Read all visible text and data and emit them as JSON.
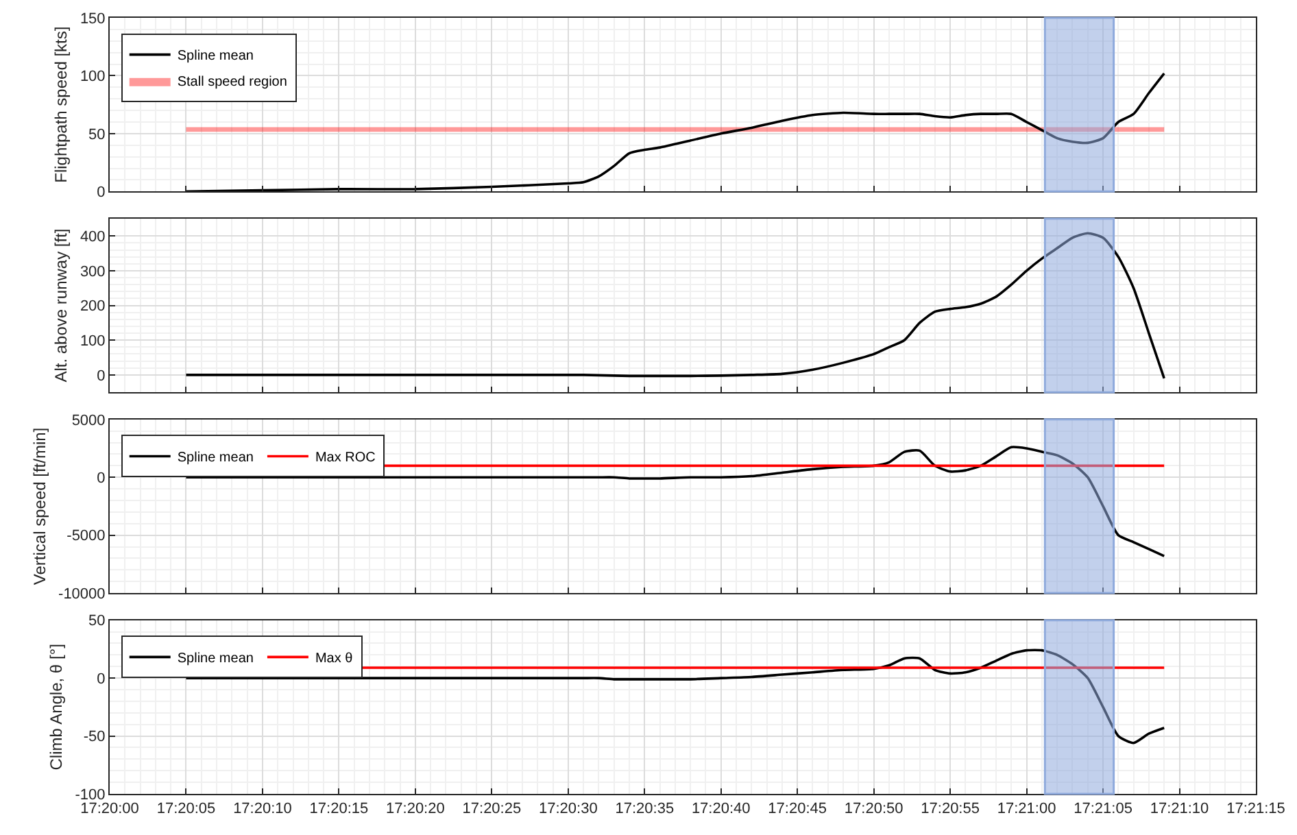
{
  "chart_data": [
    {
      "type": "line",
      "ylabel": "Flightpath speed [kts]",
      "legend": "top left",
      "grid": true,
      "tick_labels": "y",
      "x": [
        17.334722,
        17.336111,
        17.3375,
        17.338889,
        17.340278,
        17.341667,
        17.341944,
        17.342222,
        17.3425,
        17.342778,
        17.343056,
        17.343333,
        17.343889,
        17.344444,
        17.345,
        17.345556,
        17.346111,
        17.346667,
        17.347222,
        17.3475,
        17.347778,
        17.348056,
        17.348333,
        17.348611,
        17.348889,
        17.349167,
        17.349444,
        17.349722,
        17.35,
        17.350278,
        17.350556,
        17.350833,
        17.351111,
        17.351389,
        17.351667,
        17.351944,
        17.352222,
        17.3525
      ],
      "series": [
        {
          "name": "Spline mean",
          "color": "#000000",
          "values": [
            0,
            1,
            2,
            2,
            4,
            7,
            8,
            13,
            22,
            33,
            36,
            38,
            44,
            50,
            55,
            61,
            66,
            68,
            67,
            67,
            67,
            67,
            65,
            64,
            66,
            67,
            67,
            67,
            60,
            53,
            46,
            43,
            42,
            46,
            60,
            67,
            85,
            102
          ]
        }
      ],
      "bands": [
        {
          "axis": "y",
          "from": 51.5,
          "to": 55.5,
          "label": "Stall speed region",
          "color": "#ff0000"
        },
        {
          "axis": "x",
          "from": 17.350333,
          "to": 17.351583,
          "color": "#8faadc"
        }
      ],
      "xlim": [
        17.333333,
        17.354167
      ],
      "xticks": [
        {
          "value": 17.333333,
          "label": null
        },
        {
          "value": 17.334722,
          "label": null
        },
        {
          "value": 17.336111,
          "label": null
        },
        {
          "value": 17.3375,
          "label": null
        },
        {
          "value": 17.338889,
          "label": null
        },
        {
          "value": 17.340278,
          "label": null
        },
        {
          "value": 17.341667,
          "label": null
        },
        {
          "value": 17.343056,
          "label": null
        },
        {
          "value": 17.344444,
          "label": null
        },
        {
          "value": 17.345833,
          "label": null
        },
        {
          "value": 17.347222,
          "label": null
        },
        {
          "value": 17.348611,
          "label": null
        },
        {
          "value": 17.35,
          "label": null
        },
        {
          "value": 17.351389,
          "label": null
        },
        {
          "value": 17.352778,
          "label": null
        },
        {
          "value": 17.354167,
          "label": null
        }
      ],
      "ylim": [
        0,
        150
      ],
      "yticks": [
        0,
        50,
        100,
        150
      ]
    },
    {
      "type": "line",
      "ylabel": "Alt. above runway [ft]",
      "grid": true,
      "tick_labels": "y",
      "x": [
        17.334722,
        17.336111,
        17.3375,
        17.338889,
        17.340278,
        17.341667,
        17.341944,
        17.342222,
        17.3425,
        17.342778,
        17.343056,
        17.343333,
        17.343889,
        17.344444,
        17.345,
        17.345556,
        17.346111,
        17.346667,
        17.347222,
        17.3475,
        17.347778,
        17.348056,
        17.348333,
        17.348611,
        17.348889,
        17.349167,
        17.349444,
        17.349722,
        17.35,
        17.350278,
        17.350556,
        17.350833,
        17.351111,
        17.351389,
        17.351667,
        17.351944,
        17.352222,
        17.3525
      ],
      "series": [
        {
          "color": "#000000",
          "values": [
            0,
            0,
            0,
            0,
            0,
            0,
            0,
            -1,
            -2,
            -3,
            -3,
            -3,
            -3,
            -2,
            0,
            3,
            15,
            35,
            60,
            80,
            100,
            150,
            182,
            190,
            195,
            205,
            225,
            260,
            300,
            335,
            365,
            395,
            408,
            395,
            340,
            250,
            120,
            -10
          ]
        }
      ],
      "bands": [
        {
          "axis": "x",
          "from": 17.350333,
          "to": 17.351583,
          "color": "#8faadc"
        }
      ],
      "xlim": [
        17.333333,
        17.354167
      ],
      "xticks": [
        {
          "value": 17.333333,
          "label": null
        },
        {
          "value": 17.334722,
          "label": null
        },
        {
          "value": 17.336111,
          "label": null
        },
        {
          "value": 17.3375,
          "label": null
        },
        {
          "value": 17.338889,
          "label": null
        },
        {
          "value": 17.340278,
          "label": null
        },
        {
          "value": 17.341667,
          "label": null
        },
        {
          "value": 17.343056,
          "label": null
        },
        {
          "value": 17.344444,
          "label": null
        },
        {
          "value": 17.345833,
          "label": null
        },
        {
          "value": 17.347222,
          "label": null
        },
        {
          "value": 17.348611,
          "label": null
        },
        {
          "value": 17.35,
          "label": null
        },
        {
          "value": 17.351389,
          "label": null
        },
        {
          "value": 17.352778,
          "label": null
        },
        {
          "value": 17.354167,
          "label": null
        }
      ],
      "ylim": [
        -50,
        450
      ],
      "yticks": [
        0,
        100,
        200,
        300,
        400
      ]
    },
    {
      "type": "line",
      "ylabel": "Vertical speed [ft/min]",
      "legend": "top left",
      "grid": true,
      "tick_labels": "y",
      "x": [
        17.334722,
        17.336111,
        17.3375,
        17.338889,
        17.340278,
        17.341667,
        17.341944,
        17.342222,
        17.3425,
        17.342778,
        17.343056,
        17.343333,
        17.343889,
        17.344444,
        17.345,
        17.345556,
        17.346111,
        17.346667,
        17.347222,
        17.3475,
        17.347778,
        17.348056,
        17.348333,
        17.348611,
        17.348889,
        17.349167,
        17.349444,
        17.349722,
        17.35,
        17.350278,
        17.350556,
        17.350833,
        17.351111,
        17.351389,
        17.351667,
        17.351944,
        17.352222,
        17.3525
      ],
      "series": [
        {
          "name": "Spline mean",
          "color": "#000000",
          "values": [
            0,
            0,
            0,
            0,
            0,
            0,
            0,
            0,
            0,
            -100,
            -100,
            -100,
            0,
            0,
            100,
            400,
            700,
            900,
            1000,
            1300,
            2200,
            2300,
            1000,
            500,
            600,
            1000,
            1800,
            2600,
            2500,
            2200,
            1900,
            1200,
            0,
            -2500,
            -5000,
            -5600,
            -6200,
            -6800
          ]
        }
      ],
      "ref_lines": [
        {
          "axis": "y",
          "value": 1000,
          "label": "Max ROC",
          "color": "#ff0000"
        }
      ],
      "bands": [
        {
          "axis": "x",
          "from": 17.350333,
          "to": 17.351583,
          "color": "#8faadc"
        }
      ],
      "xlim": [
        17.333333,
        17.354167
      ],
      "xticks": [
        {
          "value": 17.333333,
          "label": null
        },
        {
          "value": 17.334722,
          "label": null
        },
        {
          "value": 17.336111,
          "label": null
        },
        {
          "value": 17.3375,
          "label": null
        },
        {
          "value": 17.338889,
          "label": null
        },
        {
          "value": 17.340278,
          "label": null
        },
        {
          "value": 17.341667,
          "label": null
        },
        {
          "value": 17.343056,
          "label": null
        },
        {
          "value": 17.344444,
          "label": null
        },
        {
          "value": 17.345833,
          "label": null
        },
        {
          "value": 17.347222,
          "label": null
        },
        {
          "value": 17.348611,
          "label": null
        },
        {
          "value": 17.35,
          "label": null
        },
        {
          "value": 17.351389,
          "label": null
        },
        {
          "value": 17.352778,
          "label": null
        },
        {
          "value": 17.354167,
          "label": null
        }
      ],
      "ylim": [
        -10000,
        5000
      ],
      "yticks": [
        -10000,
        -5000,
        0,
        5000
      ]
    },
    {
      "type": "line",
      "ylabel": "Climb Angle, θ [°]",
      "legend": "top left",
      "grid": true,
      "x": [
        17.334722,
        17.336111,
        17.3375,
        17.338889,
        17.340278,
        17.341667,
        17.341944,
        17.342222,
        17.3425,
        17.342778,
        17.343056,
        17.343333,
        17.343889,
        17.344444,
        17.345,
        17.345556,
        17.346111,
        17.346667,
        17.347222,
        17.3475,
        17.347778,
        17.348056,
        17.348333,
        17.348611,
        17.348889,
        17.349167,
        17.349444,
        17.349722,
        17.35,
        17.350278,
        17.350556,
        17.350833,
        17.351111,
        17.351389,
        17.351667,
        17.351944,
        17.352222,
        17.3525
      ],
      "series": [
        {
          "name": "Spline mean",
          "color": "#000000",
          "values": [
            0,
            0,
            0,
            0,
            0,
            0,
            0,
            0,
            -1,
            -1,
            -1,
            -1,
            -1,
            0,
            1,
            3,
            5,
            7,
            8,
            11,
            17,
            17,
            7,
            4,
            5,
            9,
            15,
            21,
            24,
            24,
            20,
            12,
            0,
            -25,
            -50,
            -56,
            -48,
            -43
          ]
        }
      ],
      "ref_lines": [
        {
          "axis": "y",
          "value": 9,
          "label": "Max θ",
          "color": "#ff0000"
        }
      ],
      "bands": [
        {
          "axis": "x",
          "from": 17.350333,
          "to": 17.351583,
          "color": "#8faadc"
        }
      ],
      "xlim": [
        17.333333,
        17.354167
      ],
      "xticks": [
        {
          "value": 17.333333,
          "label": "17:20:00"
        },
        {
          "value": 17.334722,
          "label": "17:20:05"
        },
        {
          "value": 17.336111,
          "label": "17:20:10"
        },
        {
          "value": 17.3375,
          "label": "17:20:15"
        },
        {
          "value": 17.338889,
          "label": "17:20:20"
        },
        {
          "value": 17.340278,
          "label": "17:20:25"
        },
        {
          "value": 17.341667,
          "label": "17:20:30"
        },
        {
          "value": 17.343056,
          "label": "17:20:35"
        },
        {
          "value": 17.344444,
          "label": "17:20:40"
        },
        {
          "value": 17.345833,
          "label": "17:20:45"
        },
        {
          "value": 17.347222,
          "label": "17:20:50"
        },
        {
          "value": 17.348611,
          "label": "17:20:55"
        },
        {
          "value": 17.35,
          "label": "17:21:00"
        },
        {
          "value": 17.351389,
          "label": "17:21:05"
        },
        {
          "value": 17.352778,
          "label": "17:21:10"
        },
        {
          "value": 17.354167,
          "label": "17:21:15"
        }
      ],
      "ylim": [
        -100,
        50
      ],
      "yticks": [
        -100,
        -50,
        0,
        50
      ]
    }
  ]
}
